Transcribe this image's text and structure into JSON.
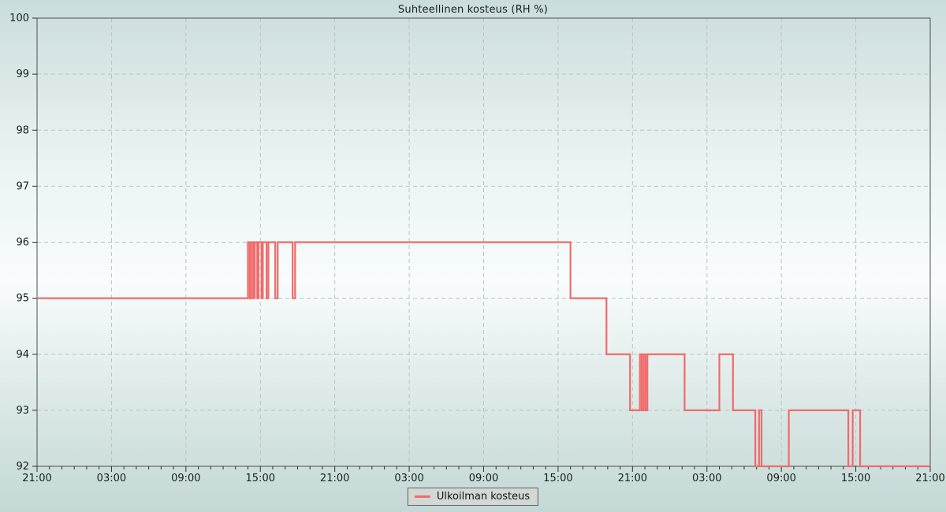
{
  "page": {
    "title": "Suhteellinen kosteus (RH %)"
  },
  "chart_data": {
    "type": "line",
    "title": "Suhteellinen kosteus (RH %)",
    "xlabel": "",
    "ylabel": "",
    "x_axis": {
      "kind": "time",
      "range_hours": [
        0,
        72
      ],
      "major_tick_hours": 6,
      "minor_tick_hours": 1,
      "tick_labels": [
        "21:00",
        "03:00",
        "09:00",
        "15:00",
        "21:00",
        "03:00",
        "09:00",
        "15:00",
        "21:00",
        "03:00",
        "09:00",
        "15:00",
        "21:00"
      ]
    },
    "y_axis": {
      "min": 92,
      "max": 100,
      "tick_step": 1,
      "tick_labels": [
        "92",
        "93",
        "94",
        "95",
        "96",
        "97",
        "98",
        "99",
        "100"
      ]
    },
    "grid": {
      "enabled": true,
      "style": "dashed"
    },
    "legend": {
      "position": "bottom-center"
    },
    "series": [
      {
        "name": "Ulkoilman kosteus",
        "color": "#f16a6a",
        "interpolation": "step-after",
        "points_unit": "[hours_since_start, RH_percent]",
        "points": [
          [
            0,
            95
          ],
          [
            17.0,
            96
          ],
          [
            17.15,
            95
          ],
          [
            17.3,
            96
          ],
          [
            17.45,
            95
          ],
          [
            17.55,
            96
          ],
          [
            17.75,
            95
          ],
          [
            17.85,
            96
          ],
          [
            18.1,
            95
          ],
          [
            18.2,
            96
          ],
          [
            18.5,
            95
          ],
          [
            18.65,
            96
          ],
          [
            19.2,
            95
          ],
          [
            19.4,
            96
          ],
          [
            20.6,
            95
          ],
          [
            20.8,
            96
          ],
          [
            43.0,
            95
          ],
          [
            45.9,
            94
          ],
          [
            47.8,
            93
          ],
          [
            48.6,
            94
          ],
          [
            48.75,
            93
          ],
          [
            48.9,
            94
          ],
          [
            49.05,
            93
          ],
          [
            49.2,
            94
          ],
          [
            52.2,
            93
          ],
          [
            55.0,
            94
          ],
          [
            56.1,
            93
          ],
          [
            57.9,
            92
          ],
          [
            58.2,
            93
          ],
          [
            58.4,
            92
          ],
          [
            60.6,
            93
          ],
          [
            65.4,
            92
          ],
          [
            65.75,
            93
          ],
          [
            66.35,
            92
          ],
          [
            72,
            92
          ]
        ]
      }
    ],
    "colors": {
      "line": "#f16a6a",
      "grid": "#b9c2c2",
      "frame": "#4a5050",
      "tick": "#2a3230",
      "text": "#15201e",
      "legend_bg": "#d3d7d6",
      "legend_border": "#5c6362"
    }
  }
}
